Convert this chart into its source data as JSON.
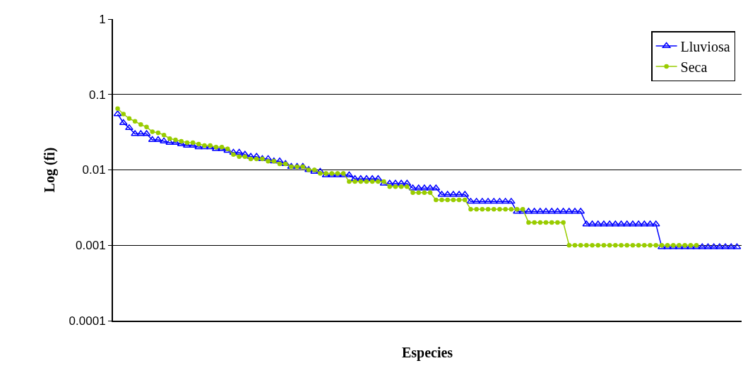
{
  "chart_data": {
    "type": "line",
    "xlabel": "Especies",
    "ylabel": "Log (fi)",
    "log": true,
    "ylim": [
      0.0001,
      1
    ],
    "yticks": [
      {
        "value": 0.0001,
        "label": "0.0001"
      },
      {
        "value": 0.001,
        "label": "0.001"
      },
      {
        "value": 0.01,
        "label": "0.01"
      },
      {
        "value": 0.1,
        "label": "0.1"
      },
      {
        "value": 1,
        "label": "1"
      }
    ],
    "grid": "y",
    "legend": "top right",
    "categories": [
      null,
      null,
      null,
      null,
      null,
      null,
      null,
      null,
      null,
      null,
      null,
      null,
      null,
      null,
      null,
      null,
      null,
      null,
      null,
      null,
      null,
      null,
      null,
      null,
      null,
      null,
      null,
      null,
      null,
      null,
      null,
      null,
      null,
      null,
      null,
      null,
      null,
      null,
      null,
      null,
      null,
      null,
      null,
      null,
      null,
      null,
      null,
      null,
      null,
      null,
      null,
      null,
      null,
      null,
      null,
      null,
      null,
      null,
      null,
      null,
      null,
      null,
      null,
      null,
      null,
      null,
      null,
      null,
      null,
      null,
      null,
      null,
      null,
      null,
      null,
      null,
      null,
      null,
      null,
      null,
      null,
      null,
      null,
      null,
      null,
      null,
      null,
      null,
      null,
      null,
      null,
      null,
      null,
      null,
      null,
      null,
      null,
      null,
      null,
      null,
      null,
      null,
      null,
      null,
      null,
      null,
      null,
      null
    ],
    "series": [
      {
        "name": "Lluviosa",
        "color": "#0000ff",
        "marker": "triangle",
        "values": [
          0.055,
          0.042,
          0.036,
          0.03,
          0.03,
          0.03,
          0.025,
          0.025,
          0.024,
          0.023,
          0.023,
          0.022,
          0.021,
          0.021,
          0.02,
          0.02,
          0.02,
          0.019,
          0.019,
          0.018,
          0.017,
          0.017,
          0.016,
          0.015,
          0.015,
          0.014,
          0.014,
          0.013,
          0.013,
          0.012,
          0.011,
          0.011,
          0.011,
          0.01,
          0.0095,
          0.0095,
          0.0085,
          0.0085,
          0.0085,
          0.0085,
          0.0085,
          0.0076,
          0.0076,
          0.0076,
          0.0076,
          0.0076,
          0.0066,
          0.0066,
          0.0066,
          0.0066,
          0.0066,
          0.0057,
          0.0057,
          0.0057,
          0.0057,
          0.0057,
          0.0047,
          0.0047,
          0.0047,
          0.0047,
          0.0047,
          0.0038,
          0.0038,
          0.0038,
          0.0038,
          0.0038,
          0.0038,
          0.0038,
          0.0038,
          0.0028,
          0.0028,
          0.0028,
          0.0028,
          0.0028,
          0.0028,
          0.0028,
          0.0028,
          0.0028,
          0.0028,
          0.0028,
          0.0028,
          0.0019,
          0.0019,
          0.0019,
          0.0019,
          0.0019,
          0.0019,
          0.0019,
          0.0019,
          0.0019,
          0.0019,
          0.0019,
          0.0019,
          0.0019,
          0.00095,
          0.00095,
          0.00095,
          0.00095,
          0.00095,
          0.00095,
          0.00095,
          0.00095,
          0.00095,
          0.00095,
          0.00095,
          0.00095,
          0.00095,
          0.00095
        ]
      },
      {
        "name": "Seca",
        "color": "#99cc00",
        "marker": "circle",
        "values": [
          0.065,
          0.055,
          0.048,
          0.044,
          0.04,
          0.037,
          0.032,
          0.031,
          0.029,
          0.026,
          0.025,
          0.024,
          0.023,
          0.023,
          0.022,
          0.021,
          0.021,
          0.02,
          0.02,
          0.019,
          0.016,
          0.015,
          0.015,
          0.014,
          0.014,
          0.014,
          0.013,
          0.013,
          0.012,
          0.012,
          0.011,
          0.011,
          0.011,
          0.01,
          0.01,
          0.009,
          0.009,
          0.009,
          0.009,
          0.009,
          0.007,
          0.007,
          0.007,
          0.007,
          0.007,
          0.007,
          0.007,
          0.006,
          0.006,
          0.006,
          0.006,
          0.005,
          0.005,
          0.005,
          0.005,
          0.004,
          0.004,
          0.004,
          0.004,
          0.004,
          0.004,
          0.003,
          0.003,
          0.003,
          0.003,
          0.003,
          0.003,
          0.003,
          0.003,
          0.003,
          0.003,
          0.002,
          0.002,
          0.002,
          0.002,
          0.002,
          0.002,
          0.002,
          0.001,
          0.001,
          0.001,
          0.001,
          0.001,
          0.001,
          0.001,
          0.001,
          0.001,
          0.001,
          0.001,
          0.001,
          0.001,
          0.001,
          0.001,
          0.001,
          0.001,
          0.001,
          0.001,
          0.001,
          0.001,
          0.001,
          0.001,
          null,
          null,
          null,
          null,
          null,
          null,
          null
        ]
      }
    ]
  }
}
